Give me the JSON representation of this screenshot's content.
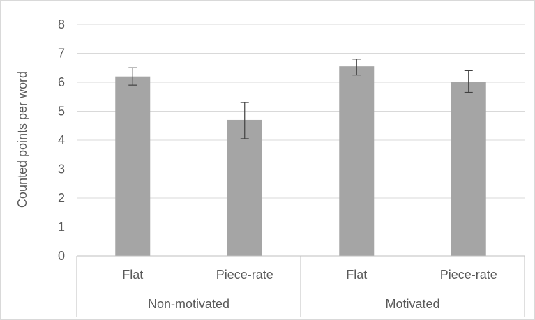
{
  "chart_data": {
    "type": "bar",
    "title": "",
    "ylabel": "Counted points per word",
    "xlabel": "",
    "ylim": [
      0,
      8
    ],
    "yticks": [
      "0",
      "1",
      "2",
      "3",
      "4",
      "5",
      "6",
      "7",
      "8"
    ],
    "grid": true,
    "groups": [
      {
        "label": "Non-motivated",
        "categories": [
          "Flat",
          "Piece-rate"
        ]
      },
      {
        "label": "Motivated",
        "categories": [
          "Flat",
          "Piece-rate"
        ]
      }
    ],
    "categories": [
      "Flat",
      "Piece-rate",
      "Flat",
      "Piece-rate"
    ],
    "values": [
      6.2,
      4.7,
      6.55,
      6.0
    ],
    "error_low": [
      5.9,
      4.05,
      6.25,
      5.65
    ],
    "error_high": [
      6.5,
      5.3,
      6.8,
      6.4
    ],
    "colors": {
      "bar": "#a5a5a5",
      "grid": "#d9d9d9",
      "axis": "#bfbfbf",
      "error": "#404040",
      "text": "#595959"
    }
  }
}
